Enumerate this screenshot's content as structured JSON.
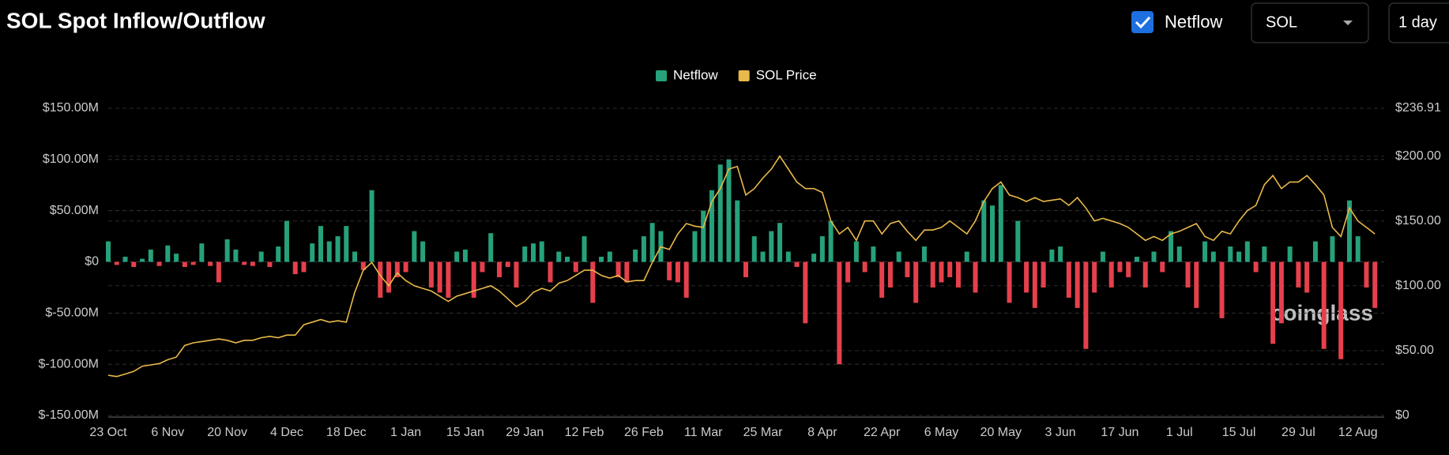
{
  "header": {
    "title": "SOL Spot Inflow/Outflow",
    "checkbox_label": "Netflow",
    "asset": "SOL",
    "interval": "1 day"
  },
  "watermark": "coinglass",
  "chart_data": {
    "type": "bar-line",
    "categories": [
      "23 Oct",
      null,
      null,
      null,
      null,
      null,
      null,
      "6 Nov",
      null,
      null,
      null,
      null,
      null,
      null,
      "20 Nov",
      null,
      null,
      null,
      null,
      null,
      null,
      "4 Dec",
      null,
      null,
      null,
      null,
      null,
      null,
      "18 Dec",
      null,
      null,
      null,
      null,
      null,
      null,
      "1 Jan",
      null,
      null,
      null,
      null,
      null,
      null,
      "15 Jan",
      null,
      null,
      null,
      null,
      null,
      null,
      "29 Jan",
      null,
      null,
      null,
      null,
      null,
      null,
      "12 Feb",
      null,
      null,
      null,
      null,
      null,
      null,
      "26 Feb",
      null,
      null,
      null,
      null,
      null,
      null,
      "11 Mar",
      null,
      null,
      null,
      null,
      null,
      null,
      "25 Mar",
      null,
      null,
      null,
      null,
      null,
      null,
      "8 Apr",
      null,
      null,
      null,
      null,
      null,
      null,
      "22 Apr",
      null,
      null,
      null,
      null,
      null,
      null,
      "6 May",
      null,
      null,
      null,
      null,
      null,
      null,
      "20 May",
      null,
      null,
      null,
      null,
      null,
      null,
      "3 Jun",
      null,
      null,
      null,
      null,
      null,
      null,
      "17 Jun",
      null,
      null,
      null,
      null,
      null,
      null,
      "1 Jul",
      null,
      null,
      null,
      null,
      null,
      null,
      "15 Jul",
      null,
      null,
      null,
      null,
      null,
      null,
      "29 Jul",
      null,
      null,
      null,
      null,
      null,
      null,
      "12 Aug",
      null,
      null
    ],
    "series": [
      {
        "name": "Netflow",
        "color": "#26a17b",
        "negative_color": "#e5404c",
        "type": "bar",
        "values": [
          20,
          -3,
          5,
          -5,
          3,
          12,
          -4,
          16,
          8,
          -5,
          -3,
          18,
          -4,
          -20,
          22,
          12,
          -3,
          -4,
          10,
          -5,
          15,
          40,
          -12,
          -10,
          18,
          35,
          20,
          25,
          35,
          10,
          -8,
          70,
          -35,
          -30,
          -15,
          -10,
          30,
          20,
          -25,
          -30,
          -35,
          10,
          12,
          -35,
          -10,
          28,
          -15,
          -5,
          -25,
          15,
          18,
          20,
          -20,
          10,
          5,
          -10,
          25,
          -40,
          5,
          10,
          -15,
          -20,
          12,
          25,
          38,
          30,
          -18,
          -20,
          -35,
          30,
          50,
          70,
          95,
          100,
          60,
          -15,
          25,
          10,
          30,
          38,
          10,
          -5,
          -60,
          8,
          25,
          40,
          -100,
          -20,
          20,
          -10,
          15,
          -35,
          -25,
          10,
          -15,
          -40,
          15,
          -25,
          -20,
          -15,
          -25,
          10,
          -30,
          60,
          55,
          75,
          -40,
          40,
          -30,
          -45,
          -25,
          12,
          15,
          -35,
          -45,
          -85,
          -30,
          10,
          -25,
          -10,
          -15,
          5,
          -25,
          10,
          -10,
          30,
          15,
          -25,
          -45,
          20,
          10,
          -55,
          15,
          10,
          20,
          -10,
          15,
          -80,
          -60,
          15,
          -25,
          -30,
          20,
          -85,
          25,
          -95,
          60,
          25,
          -25,
          -45
        ]
      },
      {
        "name": "SOL Price",
        "color": "#e9b949",
        "type": "line",
        "axis": "y2",
        "values": [
          31,
          30,
          32,
          34,
          38,
          39,
          40,
          43,
          45,
          54,
          56,
          57,
          58,
          59,
          58,
          56,
          58,
          58,
          60,
          61,
          60,
          62,
          62,
          70,
          72,
          74,
          72,
          73,
          72,
          95,
          112,
          118,
          108,
          100,
          110,
          104,
          100,
          98,
          96,
          92,
          88,
          92,
          94,
          96,
          98,
          100,
          96,
          90,
          84,
          88,
          95,
          98,
          96,
          102,
          104,
          108,
          112,
          112,
          108,
          106,
          108,
          103,
          104,
          104,
          118,
          130,
          128,
          140,
          148,
          146,
          145,
          165,
          175,
          190,
          192,
          170,
          175,
          183,
          190,
          200,
          190,
          180,
          175,
          175,
          172,
          150,
          140,
          145,
          135,
          150,
          150,
          140,
          148,
          150,
          142,
          135,
          143,
          143,
          145,
          150,
          145,
          140,
          150,
          165,
          175,
          180,
          170,
          168,
          165,
          168,
          165,
          166,
          167,
          162,
          168,
          160,
          150,
          152,
          150,
          148,
          145,
          140,
          135,
          138,
          135,
          140,
          142,
          145,
          148,
          138,
          135,
          142,
          140,
          150,
          158,
          162,
          178,
          185,
          175,
          180,
          180,
          185,
          178,
          170,
          145,
          138,
          160,
          150,
          145,
          140
        ]
      }
    ],
    "ylim": [
      -150,
      150
    ],
    "yticks": [
      {
        "value": -150,
        "label": "$-150.00M"
      },
      {
        "value": -100,
        "label": "$-100.00M"
      },
      {
        "value": -50,
        "label": "$-50.00M"
      },
      {
        "value": 0,
        "label": "$0"
      },
      {
        "value": 50,
        "label": "$50.00M"
      },
      {
        "value": 100,
        "label": "$100.00M"
      },
      {
        "value": 150,
        "label": "$150.00M"
      }
    ],
    "y2lim": [
      0,
      236.91
    ],
    "y2ticks": [
      {
        "value": 0,
        "label": "$0"
      },
      {
        "value": 50,
        "label": "$50.00"
      },
      {
        "value": 100,
        "label": "$100.00"
      },
      {
        "value": 150,
        "label": "$150.00"
      },
      {
        "value": 200,
        "label": "$200.00"
      },
      {
        "value": 236.91,
        "label": "$236.91"
      }
    ],
    "grid": true,
    "legend": "top"
  }
}
